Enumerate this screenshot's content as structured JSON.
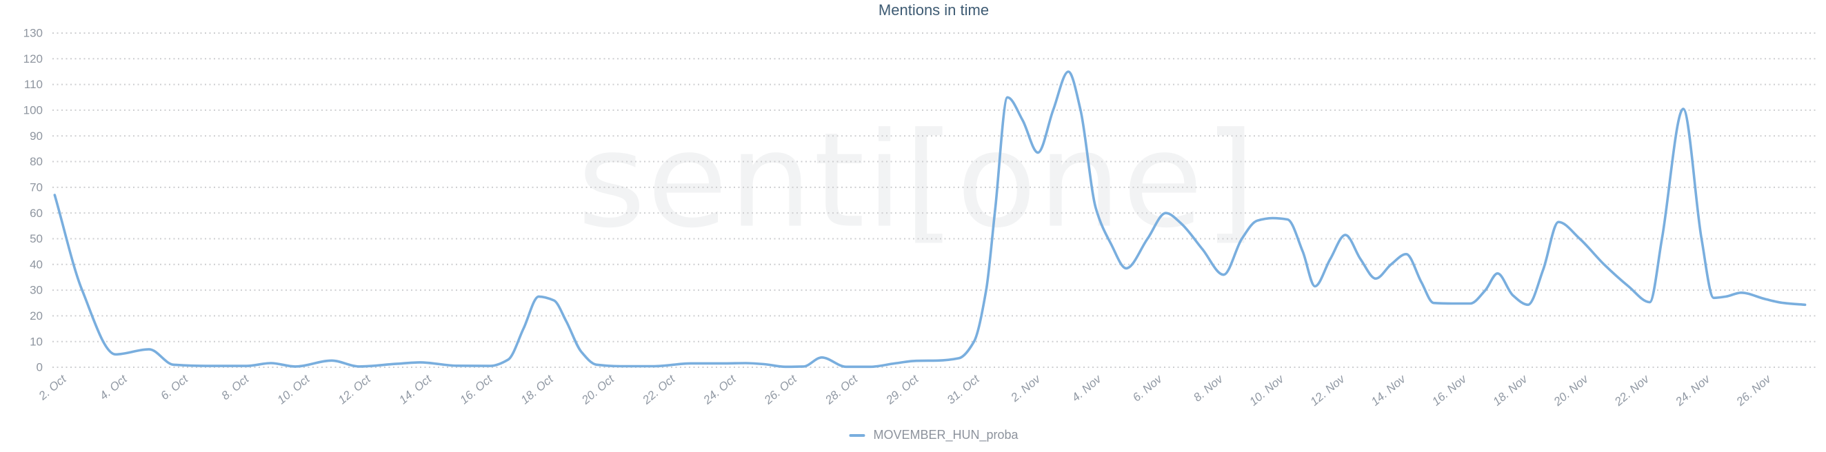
{
  "page": {
    "title": "Mentions in time",
    "watermark": "senti[one]"
  },
  "colors": {
    "line": "#79aede",
    "grid": "#cdced0",
    "axis_text": "#8e959f",
    "title_text": "#3e5b73",
    "legend_text": "#8d939d",
    "background": "#ffffff"
  },
  "legend": {
    "items": [
      {
        "label": "MOVEMBER_HUN_proba",
        "color": "#79aede"
      }
    ]
  },
  "chart_data": {
    "type": "line",
    "title": "Mentions in time",
    "series_name": "MOVEMBER_HUN_proba",
    "line_color": "#79aede",
    "xlabel": "",
    "ylabel": "",
    "ylim": [
      0,
      130
    ],
    "y_ticks": [
      0,
      10,
      20,
      30,
      40,
      50,
      60,
      70,
      80,
      90,
      100,
      110,
      120,
      130
    ],
    "grid": "horizontal-dotted",
    "legend_position": "bottom-center",
    "x_tick_labels": [
      "2. Oct",
      "4. Oct",
      "6. Oct",
      "8. Oct",
      "10. Oct",
      "12. Oct",
      "14. Oct",
      "16. Oct",
      "18. Oct",
      "20. Oct",
      "22. Oct",
      "24. Oct",
      "26. Oct",
      "28. Oct",
      "29. Oct",
      "31. Oct",
      "2. Nov",
      "4. Nov",
      "6. Nov",
      "8. Nov",
      "10. Nov",
      "12. Nov",
      "14. Nov",
      "16. Nov",
      "18. Nov",
      "20. Nov",
      "22. Nov",
      "24. Nov",
      "26. Nov"
    ],
    "x_units_between_ticks": 2,
    "points": [
      [
        -0.4,
        67
      ],
      [
        0.5,
        30
      ],
      [
        1.6,
        5
      ],
      [
        2.7,
        7
      ],
      [
        3.5,
        1
      ],
      [
        4.6,
        0.5
      ],
      [
        5.9,
        0.5
      ],
      [
        6.7,
        1.6
      ],
      [
        7.5,
        0.3
      ],
      [
        8.7,
        2.6
      ],
      [
        9.6,
        0.3
      ],
      [
        10.8,
        1.3
      ],
      [
        11.6,
        1.9
      ],
      [
        12.8,
        0.6
      ],
      [
        13.9,
        0.5
      ],
      [
        14.5,
        3
      ],
      [
        15.0,
        15
      ],
      [
        15.5,
        27.5
      ],
      [
        16.0,
        26
      ],
      [
        16.4,
        18
      ],
      [
        16.9,
        6
      ],
      [
        17.4,
        1
      ],
      [
        18.2,
        0.4
      ],
      [
        19.3,
        0.4
      ],
      [
        20.5,
        1.5
      ],
      [
        21.6,
        1.5
      ],
      [
        22.3,
        1.6
      ],
      [
        22.9,
        1.2
      ],
      [
        23.6,
        0.2
      ],
      [
        24.2,
        0.3
      ],
      [
        24.8,
        3.8
      ],
      [
        25.6,
        0.2
      ],
      [
        26.4,
        0.2
      ],
      [
        27.2,
        1.5
      ],
      [
        27.9,
        2.5
      ],
      [
        28.6,
        2.6
      ],
      [
        29.3,
        3.5
      ],
      [
        29.8,
        10
      ],
      [
        30.2,
        30
      ],
      [
        30.5,
        62
      ],
      [
        30.9,
        105
      ],
      [
        31.4,
        96
      ],
      [
        31.9,
        83.5
      ],
      [
        32.4,
        100
      ],
      [
        32.9,
        115
      ],
      [
        33.3,
        100
      ],
      [
        33.8,
        62
      ],
      [
        34.3,
        48
      ],
      [
        34.8,
        38.5
      ],
      [
        35.5,
        50
      ],
      [
        36.1,
        60
      ],
      [
        36.6,
        56
      ],
      [
        37.3,
        46
      ],
      [
        38.0,
        36
      ],
      [
        38.6,
        50
      ],
      [
        39.1,
        57
      ],
      [
        39.6,
        58
      ],
      [
        40.1,
        57.5
      ],
      [
        40.6,
        45
      ],
      [
        41.0,
        31.5
      ],
      [
        41.5,
        42
      ],
      [
        42.0,
        51.5
      ],
      [
        42.5,
        42
      ],
      [
        43.0,
        34.5
      ],
      [
        43.5,
        40
      ],
      [
        44.0,
        44
      ],
      [
        44.5,
        33
      ],
      [
        44.9,
        25
      ],
      [
        45.5,
        24.8
      ],
      [
        46.1,
        24.8
      ],
      [
        46.6,
        30
      ],
      [
        47.0,
        36.5
      ],
      [
        47.5,
        28
      ],
      [
        48.0,
        24.3
      ],
      [
        48.5,
        38
      ],
      [
        49.0,
        56.5
      ],
      [
        49.7,
        50
      ],
      [
        50.5,
        40
      ],
      [
        51.3,
        31.5
      ],
      [
        52.0,
        25.3
      ],
      [
        52.4,
        50
      ],
      [
        53.1,
        100.5
      ],
      [
        53.7,
        50
      ],
      [
        54.1,
        27
      ],
      [
        54.5,
        27.5
      ],
      [
        55.0,
        29
      ],
      [
        55.8,
        26.5
      ],
      [
        56.4,
        25
      ],
      [
        57.1,
        24.3
      ]
    ]
  }
}
